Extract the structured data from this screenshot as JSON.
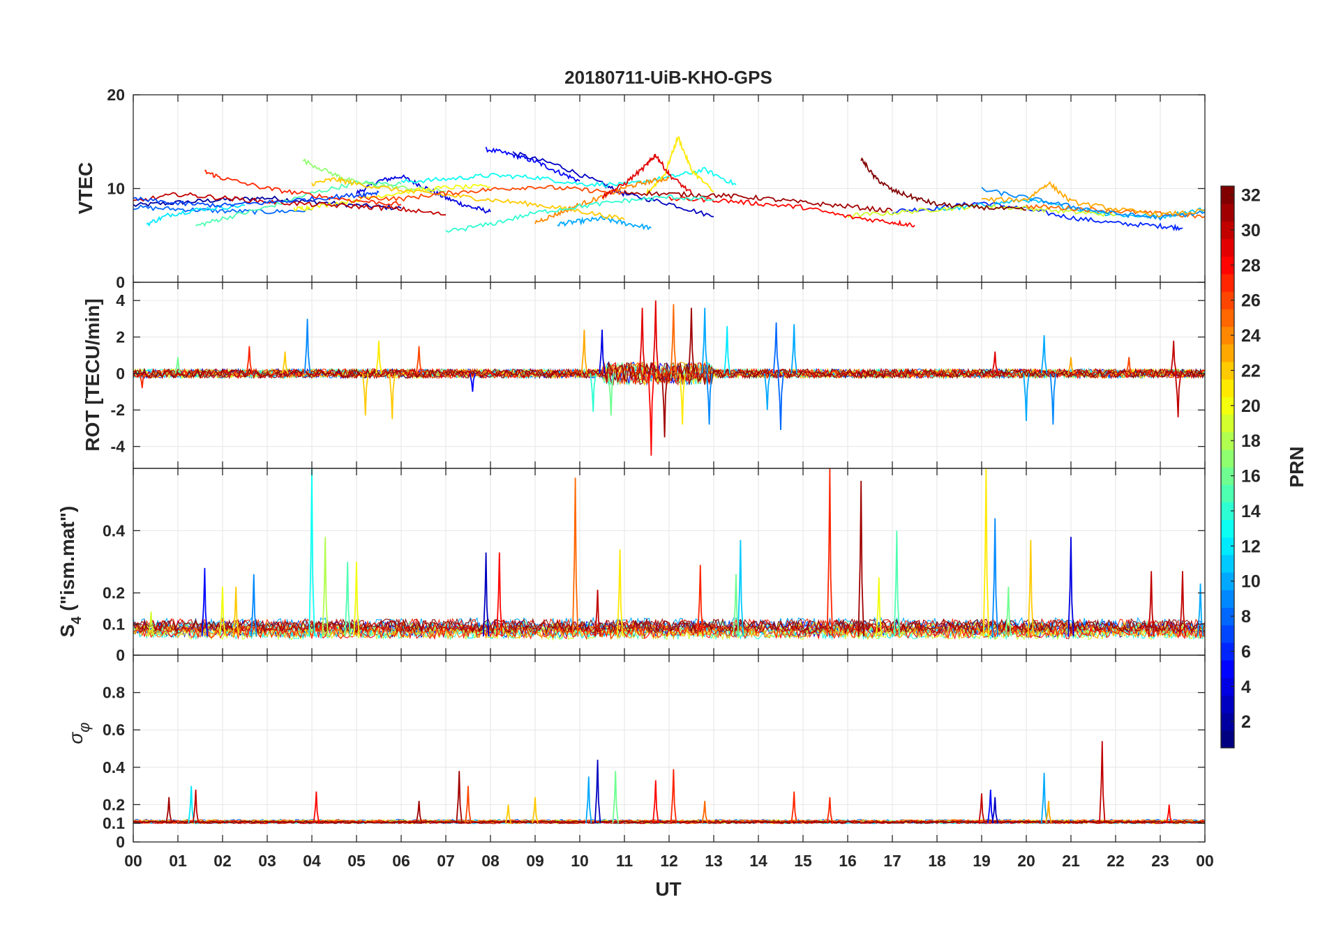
{
  "figure": {
    "title": "20180711-UiB-KHO-GPS",
    "xlabel": "UT"
  },
  "colorbar": {
    "label": "PRN",
    "range": [
      1,
      32
    ],
    "tick_values": [
      2,
      4,
      6,
      8,
      10,
      12,
      14,
      16,
      18,
      20,
      22,
      24,
      26,
      28,
      30,
      32
    ],
    "tick_labels": [
      "2",
      "4",
      "6",
      "8",
      "10",
      "12",
      "14",
      "16",
      "18",
      "20",
      "22",
      "24",
      "26",
      "28",
      "30",
      "32"
    ],
    "colormap": "jet"
  },
  "chart_data": [
    {
      "type": "line",
      "panel": "vtec",
      "ylabel": "VTEC",
      "ylim": [
        0,
        20
      ],
      "y_tick_values": [
        0,
        10,
        20
      ],
      "y_tick_labels": [
        "0",
        "10",
        "20"
      ],
      "xlim": [
        0,
        24
      ],
      "grid": true,
      "series": [
        {
          "prn": 2,
          "x": [
            0,
            1,
            2,
            3,
            4,
            5,
            6
          ],
          "y": [
            8.2,
            8.5,
            8.8,
            9.0,
            8.6,
            8.2,
            7.9
          ]
        },
        {
          "prn": 4,
          "x": [
            5,
            5.5,
            6,
            6.5,
            7,
            7.5,
            8
          ],
          "y": [
            9.5,
            10.8,
            11.3,
            10.2,
            9.0,
            8.1,
            7.5
          ]
        },
        {
          "prn": 5,
          "x": [
            7.9,
            8.5,
            9,
            9.5,
            10
          ],
          "y": [
            14.2,
            13.6,
            12.9,
            11.8,
            10.8
          ]
        },
        {
          "prn": 3,
          "x": [
            8.5,
            9.5,
            10.5,
            11,
            12,
            13
          ],
          "y": [
            13.8,
            12.5,
            10.5,
            9.4,
            8.4,
            7.0
          ]
        },
        {
          "prn": 6,
          "x": [
            17,
            18,
            19,
            20,
            21,
            22,
            23,
            23.5
          ],
          "y": [
            7.6,
            7.9,
            8.5,
            7.8,
            6.9,
            6.3,
            6.0,
            5.8
          ]
        },
        {
          "prn": 8,
          "x": [
            0,
            1,
            2,
            3,
            4
          ],
          "y": [
            8.0,
            7.8,
            7.6,
            7.5,
            7.7
          ]
        },
        {
          "prn": 10,
          "x": [
            9.5,
            10,
            10.5,
            11,
            11.6
          ],
          "y": [
            6.2,
            6.5,
            6.8,
            6.3,
            5.8
          ]
        },
        {
          "prn": 11,
          "x": [
            18,
            19,
            20,
            21,
            22,
            23,
            24
          ],
          "y": [
            7.7,
            8.2,
            8.8,
            7.9,
            7.2,
            7.0,
            7.8
          ]
        },
        {
          "prn": 12,
          "x": [
            0.3,
            0.8,
            1.5,
            2.5
          ],
          "y": [
            6.2,
            7.2,
            7.8,
            8.2
          ]
        },
        {
          "prn": 13,
          "x": [
            6,
            7,
            8,
            9,
            10,
            11,
            12,
            12.8,
            13.5
          ],
          "y": [
            10.7,
            11.0,
            11.4,
            11.2,
            10.5,
            10.4,
            11.2,
            12.0,
            10.4
          ]
        },
        {
          "prn": 15,
          "x": [
            1.4,
            2,
            3,
            4,
            5,
            6
          ],
          "y": [
            6.0,
            6.8,
            8.0,
            9.5,
            10.6,
            10.5
          ]
        },
        {
          "prn": 17,
          "x": [
            3.8,
            4.5,
            5,
            6,
            7
          ],
          "y": [
            13.0,
            11.5,
            10.6,
            10.1,
            9.7
          ]
        },
        {
          "prn": 19,
          "x": [
            16,
            17,
            18,
            19,
            20,
            21,
            22
          ],
          "y": [
            7.1,
            7.4,
            7.8,
            8.1,
            7.9,
            7.5,
            7.2
          ]
        },
        {
          "prn": 20,
          "x": [
            3.6,
            4,
            5,
            6,
            7,
            8
          ],
          "y": [
            7.8,
            8.0,
            8.8,
            9.6,
            10.1,
            10.2
          ]
        },
        {
          "prn": 21,
          "x": [
            11.5,
            11.9,
            12.2,
            12.5,
            13
          ],
          "y": [
            9.5,
            11.5,
            15.5,
            12.0,
            9.6
          ]
        },
        {
          "prn": 22,
          "x": [
            4,
            4.5,
            5,
            6,
            7,
            8,
            9,
            10,
            11
          ],
          "y": [
            10.5,
            11.0,
            10.5,
            9.8,
            9.3,
            8.8,
            8.3,
            7.6,
            6.7
          ]
        },
        {
          "prn": 24,
          "x": [
            9,
            9.5,
            10,
            10.5,
            11,
            11.5,
            12
          ],
          "y": [
            6.4,
            7.3,
            8.3,
            9.1,
            10.1,
            10.7,
            11.1
          ]
        },
        {
          "prn": 25,
          "x": [
            20,
            21,
            22,
            23,
            24
          ],
          "y": [
            8.1,
            7.9,
            7.6,
            7.3,
            7.0
          ]
        },
        {
          "prn": 26,
          "x": [
            5,
            6,
            7,
            8,
            9,
            10,
            11
          ],
          "y": [
            9.1,
            8.9,
            9.5,
            9.9,
            10.2,
            9.9,
            9.5
          ]
        },
        {
          "prn": 27,
          "x": [
            1.6,
            2,
            3,
            4,
            5,
            6
          ],
          "y": [
            11.8,
            11.1,
            10.0,
            9.3,
            8.7,
            8.3
          ]
        },
        {
          "prn": 28,
          "x": [
            12,
            13,
            14,
            15,
            16,
            17,
            17.5
          ],
          "y": [
            8.9,
            8.8,
            8.4,
            8.0,
            7.0,
            6.4,
            6.1
          ]
        },
        {
          "prn": 29,
          "x": [
            10.5,
            11,
            11.5,
            11.7,
            12,
            12.5
          ],
          "y": [
            9.1,
            10.5,
            12.5,
            13.6,
            11.5,
            9.5
          ]
        },
        {
          "prn": 30,
          "x": [
            0,
            1,
            2,
            3,
            4,
            5,
            6,
            7
          ],
          "y": [
            8.6,
            9.4,
            9.0,
            8.6,
            8.3,
            8.1,
            7.8,
            7.2
          ]
        },
        {
          "prn": 31,
          "x": [
            11,
            12,
            13,
            14,
            15,
            16,
            17
          ],
          "y": [
            9.6,
            9.4,
            9.3,
            9.0,
            8.5,
            8.1,
            7.6
          ]
        },
        {
          "prn": 32,
          "x": [
            16.3,
            16.6,
            17,
            17.5,
            18,
            19,
            20
          ],
          "y": [
            13.2,
            11.2,
            9.8,
            9.0,
            8.3,
            8.0,
            7.7
          ]
        },
        {
          "prn": 14,
          "x": [
            7,
            8,
            9,
            10,
            11,
            12,
            13
          ],
          "y": [
            5.4,
            6.2,
            7.4,
            8.1,
            8.7,
            9.1,
            8.8
          ]
        },
        {
          "prn": 9,
          "x": [
            19,
            20,
            21,
            22,
            23,
            24
          ],
          "y": [
            9.9,
            9.0,
            8.1,
            7.3,
            6.9,
            7.5
          ]
        },
        {
          "prn": 23,
          "x": [
            19,
            20,
            20.5,
            21,
            22,
            23,
            24
          ],
          "y": [
            8.8,
            8.8,
            10.6,
            8.6,
            7.8,
            7.2,
            7.6
          ]
        },
        {
          "prn": 7,
          "x": [
            0,
            1,
            2,
            3,
            4,
            5,
            5.5
          ],
          "y": [
            8.9,
            8.4,
            8.2,
            8.5,
            8.9,
            9.3,
            9.6
          ]
        }
      ]
    },
    {
      "type": "line",
      "panel": "rot",
      "ylabel": "ROT [TECU/min]",
      "ylim": [
        -5.2,
        5
      ],
      "y_tick_values": [
        -4,
        -2,
        0,
        2,
        4
      ],
      "y_tick_labels": [
        "-4",
        "-2",
        "0",
        "2",
        "4"
      ],
      "xlim": [
        0,
        24
      ],
      "grid": true,
      "baseline_noise": 0.25,
      "spikes": [
        {
          "x": 0.2,
          "y": -0.8,
          "prn": 27
        },
        {
          "x": 1.0,
          "y": 0.9,
          "prn": 16
        },
        {
          "x": 2.6,
          "y": 1.5,
          "prn": 27
        },
        {
          "x": 3.9,
          "y": 3.0,
          "prn": 9
        },
        {
          "x": 3.4,
          "y": 1.2,
          "prn": 22
        },
        {
          "x": 5.2,
          "y": -2.3,
          "prn": 22
        },
        {
          "x": 5.5,
          "y": 1.8,
          "prn": 21
        },
        {
          "x": 5.8,
          "y": -2.5,
          "prn": 22
        },
        {
          "x": 6.4,
          "y": 1.5,
          "prn": 26
        },
        {
          "x": 7.6,
          "y": -1.0,
          "prn": 5
        },
        {
          "x": 10.1,
          "y": 2.4,
          "prn": 23
        },
        {
          "x": 10.3,
          "y": -2.1,
          "prn": 14
        },
        {
          "x": 10.5,
          "y": 2.4,
          "prn": 4
        },
        {
          "x": 10.7,
          "y": -2.3,
          "prn": 16
        },
        {
          "x": 11.4,
          "y": 3.6,
          "prn": 29
        },
        {
          "x": 11.6,
          "y": -4.5,
          "prn": 28
        },
        {
          "x": 11.7,
          "y": 4.0,
          "prn": 29
        },
        {
          "x": 11.9,
          "y": -3.5,
          "prn": 31
        },
        {
          "x": 12.1,
          "y": 3.8,
          "prn": 25
        },
        {
          "x": 12.3,
          "y": -2.8,
          "prn": 21
        },
        {
          "x": 12.5,
          "y": 3.6,
          "prn": 31
        },
        {
          "x": 12.8,
          "y": 3.6,
          "prn": 10
        },
        {
          "x": 12.9,
          "y": -2.8,
          "prn": 9
        },
        {
          "x": 13.3,
          "y": 2.6,
          "prn": 12
        },
        {
          "x": 14.4,
          "y": 2.8,
          "prn": 8
        },
        {
          "x": 14.5,
          "y": -3.1,
          "prn": 8
        },
        {
          "x": 14.2,
          "y": -2.0,
          "prn": 10
        },
        {
          "x": 14.8,
          "y": 2.7,
          "prn": 10
        },
        {
          "x": 19.3,
          "y": 1.2,
          "prn": 29
        },
        {
          "x": 20.0,
          "y": -2.6,
          "prn": 10
        },
        {
          "x": 20.4,
          "y": 2.1,
          "prn": 10
        },
        {
          "x": 20.6,
          "y": -2.8,
          "prn": 9
        },
        {
          "x": 21.0,
          "y": 0.9,
          "prn": 23
        },
        {
          "x": 22.3,
          "y": 0.9,
          "prn": 26
        },
        {
          "x": 23.3,
          "y": 1.8,
          "prn": 30
        },
        {
          "x": 23.4,
          "y": -2.4,
          "prn": 30
        }
      ]
    },
    {
      "type": "line",
      "panel": "s4",
      "ylabel": "S4 (\"ism.mat\")",
      "ylim": [
        0,
        0.6
      ],
      "y_tick_values": [
        0,
        0.1,
        0.2,
        0.4
      ],
      "y_tick_labels": [
        "0",
        "0.1",
        "0.2",
        "0.4"
      ],
      "xlim": [
        0,
        24
      ],
      "grid": true,
      "baseline": 0.06,
      "spikes": [
        {
          "x": 1.6,
          "y": 0.28,
          "prn": 5
        },
        {
          "x": 2.0,
          "y": 0.22,
          "prn": 20
        },
        {
          "x": 2.3,
          "y": 0.22,
          "prn": 22
        },
        {
          "x": 2.7,
          "y": 0.26,
          "prn": 9
        },
        {
          "x": 4.0,
          "y": 0.6,
          "prn": 13
        },
        {
          "x": 4.3,
          "y": 0.38,
          "prn": 18
        },
        {
          "x": 4.8,
          "y": 0.3,
          "prn": 15
        },
        {
          "x": 5.0,
          "y": 0.3,
          "prn": 20
        },
        {
          "x": 7.9,
          "y": 0.33,
          "prn": 3
        },
        {
          "x": 8.2,
          "y": 0.33,
          "prn": 28
        },
        {
          "x": 9.9,
          "y": 0.57,
          "prn": 25
        },
        {
          "x": 10.4,
          "y": 0.21,
          "prn": 30
        },
        {
          "x": 10.9,
          "y": 0.34,
          "prn": 21
        },
        {
          "x": 12.7,
          "y": 0.29,
          "prn": 27
        },
        {
          "x": 13.6,
          "y": 0.37,
          "prn": 11
        },
        {
          "x": 13.5,
          "y": 0.26,
          "prn": 16
        },
        {
          "x": 15.6,
          "y": 0.6,
          "prn": 27
        },
        {
          "x": 16.3,
          "y": 0.56,
          "prn": 31
        },
        {
          "x": 16.7,
          "y": 0.25,
          "prn": 20
        },
        {
          "x": 17.1,
          "y": 0.4,
          "prn": 15
        },
        {
          "x": 19.1,
          "y": 0.6,
          "prn": 21
        },
        {
          "x": 19.3,
          "y": 0.44,
          "prn": 9
        },
        {
          "x": 19.6,
          "y": 0.22,
          "prn": 16
        },
        {
          "x": 20.1,
          "y": 0.37,
          "prn": 22
        },
        {
          "x": 21.0,
          "y": 0.38,
          "prn": 4
        },
        {
          "x": 22.8,
          "y": 0.27,
          "prn": 30
        },
        {
          "x": 23.5,
          "y": 0.27,
          "prn": 30
        },
        {
          "x": 23.9,
          "y": 0.23,
          "prn": 10
        },
        {
          "x": 0.4,
          "y": 0.14,
          "prn": 19
        }
      ]
    },
    {
      "type": "line",
      "panel": "sigma_phi",
      "ylabel": "σφ",
      "ylim": [
        0,
        1
      ],
      "y_tick_values": [
        0,
        0.1,
        0.2,
        0.4,
        0.6,
        0.8
      ],
      "y_tick_labels": [
        "0",
        "0.1",
        "0.2",
        "0.4",
        "0.6",
        "0.8"
      ],
      "xlim": [
        0,
        24
      ],
      "x_tick_values": [
        0,
        1,
        2,
        3,
        4,
        5,
        6,
        7,
        8,
        9,
        10,
        11,
        12,
        13,
        14,
        15,
        16,
        17,
        18,
        19,
        20,
        21,
        22,
        23,
        24
      ],
      "x_tick_labels": [
        "00",
        "01",
        "02",
        "03",
        "04",
        "05",
        "06",
        "07",
        "08",
        "09",
        "10",
        "11",
        "12",
        "13",
        "14",
        "15",
        "16",
        "17",
        "18",
        "19",
        "20",
        "21",
        "22",
        "23",
        "00"
      ],
      "grid": true,
      "baseline": 0.1,
      "spikes": [
        {
          "x": 0.8,
          "y": 0.24,
          "prn": 31
        },
        {
          "x": 1.3,
          "y": 0.3,
          "prn": 12
        },
        {
          "x": 1.4,
          "y": 0.28,
          "prn": 30
        },
        {
          "x": 4.1,
          "y": 0.27,
          "prn": 28
        },
        {
          "x": 6.4,
          "y": 0.22,
          "prn": 31
        },
        {
          "x": 7.3,
          "y": 0.38,
          "prn": 31
        },
        {
          "x": 7.5,
          "y": 0.3,
          "prn": 26
        },
        {
          "x": 8.4,
          "y": 0.2,
          "prn": 22
        },
        {
          "x": 9.0,
          "y": 0.24,
          "prn": 22
        },
        {
          "x": 10.2,
          "y": 0.35,
          "prn": 10
        },
        {
          "x": 10.4,
          "y": 0.44,
          "prn": 3
        },
        {
          "x": 10.8,
          "y": 0.38,
          "prn": 16
        },
        {
          "x": 11.7,
          "y": 0.33,
          "prn": 28
        },
        {
          "x": 12.1,
          "y": 0.39,
          "prn": 27
        },
        {
          "x": 12.8,
          "y": 0.22,
          "prn": 25
        },
        {
          "x": 14.8,
          "y": 0.27,
          "prn": 27
        },
        {
          "x": 15.6,
          "y": 0.24,
          "prn": 27
        },
        {
          "x": 19.0,
          "y": 0.26,
          "prn": 30
        },
        {
          "x": 19.2,
          "y": 0.28,
          "prn": 5
        },
        {
          "x": 19.3,
          "y": 0.24,
          "prn": 3
        },
        {
          "x": 20.4,
          "y": 0.37,
          "prn": 10
        },
        {
          "x": 20.5,
          "y": 0.22,
          "prn": 23
        },
        {
          "x": 21.7,
          "y": 0.54,
          "prn": 30
        },
        {
          "x": 23.2,
          "y": 0.2,
          "prn": 28
        }
      ]
    }
  ]
}
